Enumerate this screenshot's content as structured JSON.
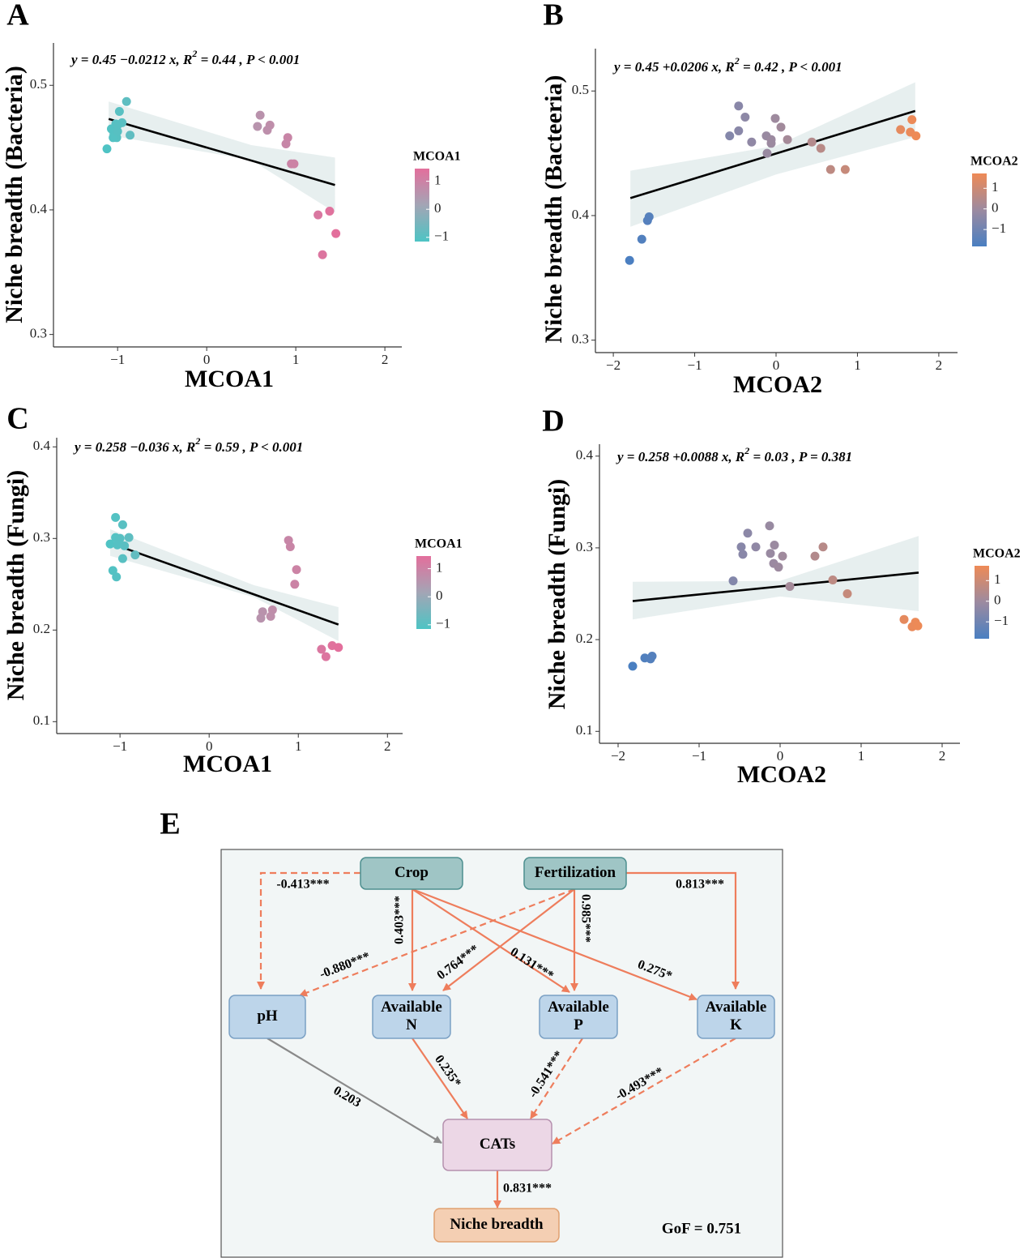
{
  "chart_data": [
    {
      "type": "scatter",
      "panel": "A",
      "equation": {
        "lhs": "y = 0.45  −0.0212   x,  R",
        "sup": "2",
        "rhs": " = 0.44 ,  P < 0.001"
      },
      "x_label": "MCOA1",
      "y_label": "Niche breadth (Bacteria)",
      "xlim": [
        -1.72,
        2.19
      ],
      "ylim": [
        0.29,
        0.534
      ],
      "xticks": [
        {
          "value": -1,
          "label": "−1"
        },
        0,
        1,
        2
      ],
      "yticks": [
        0.3,
        0.4,
        0.5
      ],
      "x": [
        -0.9,
        -0.98,
        -0.95,
        -1.02,
        -1.07,
        -0.86,
        -1.04,
        -1.01,
        -1.05,
        -1.12,
        -1.0,
        -1.0,
        0.6,
        0.71,
        0.57,
        0.68,
        0.91,
        0.89,
        0.95,
        0.98,
        1.25,
        1.38,
        1.45,
        1.3
      ],
      "y": [
        0.487,
        0.479,
        0.47,
        0.469,
        0.465,
        0.46,
        0.461,
        0.458,
        0.458,
        0.449,
        0.463,
        0.468,
        0.476,
        0.468,
        0.467,
        0.464,
        0.458,
        0.453,
        0.437,
        0.437,
        0.396,
        0.399,
        0.381,
        0.364
      ],
      "fit": {
        "x": [
          -1.1,
          1.44
        ],
        "y": [
          0.473,
          0.42
        ],
        "color": "#000000"
      },
      "band": {
        "x": [
          -1.1,
          0.5,
          1.44
        ],
        "lower": [
          0.46,
          0.44,
          0.398
        ],
        "upper": [
          0.487,
          0.452,
          0.442
        ],
        "color": "#e3ecec"
      },
      "colorbar": {
        "title": "MCOA1",
        "lim": [
          -1.15,
          1.45
        ],
        "ticks": [
          1,
          0,
          {
            "value": -1,
            "label": "−1"
          }
        ],
        "colors": [
          "#4dc4c4",
          "#a3a5b5",
          "#e36f9c"
        ]
      }
    },
    {
      "type": "scatter",
      "panel": "B",
      "equation": {
        "lhs": "y = 0.45  +0.0206   x,  R",
        "sup": "2",
        "rhs": " = 0.42 ,  P < 0.001"
      },
      "x_label": "MCOA2",
      "y_label": "Niche breadth (Bacteeria)",
      "xlim": [
        -2.22,
        2.23
      ],
      "ylim": [
        0.29,
        0.534
      ],
      "xticks": [
        {
          "value": -2,
          "label": "−2"
        },
        {
          "value": -1,
          "label": "−1"
        },
        0,
        1,
        2
      ],
      "yticks": [
        0.3,
        0.4,
        0.5
      ],
      "x": [
        -0.46,
        -0.38,
        -0.01,
        -0.46,
        0.06,
        -0.57,
        -0.12,
        -0.06,
        -0.06,
        -0.3,
        0.14,
        -0.11,
        0.44,
        0.55,
        0.67,
        0.85,
        1.53,
        1.67,
        1.65,
        1.72,
        -1.56,
        -1.58,
        -1.65,
        -1.8
      ],
      "y": [
        0.488,
        0.479,
        0.478,
        0.468,
        0.471,
        0.464,
        0.464,
        0.461,
        0.458,
        0.459,
        0.461,
        0.45,
        0.459,
        0.454,
        0.437,
        0.437,
        0.469,
        0.477,
        0.467,
        0.464,
        0.399,
        0.396,
        0.381,
        0.364
      ],
      "fit": {
        "x": [
          -1.79,
          1.71
        ],
        "y": [
          0.414,
          0.484
        ],
        "color": "#000000"
      },
      "band": {
        "x": [
          -1.79,
          0,
          1.71
        ],
        "lower": [
          0.391,
          0.433,
          0.463
        ],
        "upper": [
          0.436,
          0.456,
          0.507
        ],
        "color": "#e3ecec"
      },
      "colorbar": {
        "title": "MCOA2",
        "lim": [
          -1.82,
          1.72
        ],
        "ticks": [
          1,
          0,
          {
            "value": -1,
            "label": "−1"
          }
        ],
        "colors": [
          "#4a7fc1",
          "#9c8aa0",
          "#ee8a56"
        ]
      }
    },
    {
      "type": "scatter",
      "panel": "C",
      "equation": {
        "lhs": "y = 0.258  −0.036   x,  R",
        "sup": "2",
        "rhs": " = 0.59 ,  P < 0.001"
      },
      "x_label": "MCOA1",
      "y_label": "Niche breadth (Fungi)",
      "xlim": [
        -1.71,
        2.17
      ],
      "ylim": [
        0.087,
        0.41
      ],
      "xticks": [
        {
          "value": -1,
          "label": "−1"
        },
        0,
        1,
        2
      ],
      "yticks": [
        0.1,
        0.2,
        0.3,
        0.4
      ],
      "x": [
        -1.05,
        -0.97,
        -1.05,
        -1.0,
        -0.9,
        -1.11,
        -1.03,
        -0.95,
        -0.83,
        -0.97,
        -1.08,
        -1.04,
        0.89,
        0.91,
        0.98,
        0.96,
        0.6,
        0.71,
        0.58,
        0.69,
        1.26,
        1.38,
        1.45,
        1.31
      ],
      "y": [
        0.323,
        0.315,
        0.301,
        0.3,
        0.301,
        0.294,
        0.293,
        0.292,
        0.282,
        0.278,
        0.265,
        0.258,
        0.298,
        0.291,
        0.266,
        0.25,
        0.22,
        0.222,
        0.213,
        0.215,
        0.179,
        0.183,
        0.181,
        0.171
      ],
      "fit": {
        "x": [
          -1.11,
          1.45
        ],
        "y": [
          0.295,
          0.206
        ],
        "color": "#000000"
      },
      "band": {
        "x": [
          -1.11,
          0.5,
          1.45
        ],
        "lower": [
          0.281,
          0.236,
          0.188
        ],
        "upper": [
          0.31,
          0.249,
          0.225
        ],
        "color": "#e3ecec"
      },
      "colorbar": {
        "title": "MCOA1",
        "lim": [
          -1.15,
          1.45
        ],
        "ticks": [
          1,
          0,
          {
            "value": -1,
            "label": "−1"
          }
        ],
        "colors": [
          "#4dc4c4",
          "#a3a5b5",
          "#e36f9c"
        ]
      }
    },
    {
      "type": "scatter",
      "panel": "D",
      "equation": {
        "lhs": "y = 0.258  +0.0088   x,  R",
        "sup": "2",
        "rhs": " = 0.03 ,  P = 0.381"
      },
      "x_label": "MCOA2",
      "y_label": "Niche breadth (Fungi)",
      "xlim": [
        -2.23,
        2.22
      ],
      "ylim": [
        0.087,
        0.413
      ],
      "xticks": [
        {
          "value": -2,
          "label": "−2"
        },
        {
          "value": -1,
          "label": "−1"
        },
        0,
        1,
        2
      ],
      "yticks": [
        0.1,
        0.2,
        0.3,
        0.4
      ],
      "x": [
        -0.13,
        -0.4,
        -0.48,
        -0.3,
        -0.07,
        -0.46,
        -0.12,
        0.03,
        -0.08,
        -0.02,
        0.53,
        0.43,
        -0.58,
        0.12,
        0.65,
        0.83,
        1.53,
        1.67,
        1.63,
        1.7,
        -1.58,
        -1.67,
        -1.6,
        -1.82
      ],
      "y": [
        0.324,
        0.316,
        0.301,
        0.301,
        0.303,
        0.293,
        0.294,
        0.291,
        0.283,
        0.279,
        0.301,
        0.291,
        0.264,
        0.258,
        0.265,
        0.25,
        0.222,
        0.219,
        0.214,
        0.215,
        0.182,
        0.18,
        0.179,
        0.171
      ],
      "fit": {
        "x": [
          -1.82,
          1.71
        ],
        "y": [
          0.242,
          0.273
        ],
        "color": "#000000"
      },
      "band": {
        "x": [
          -1.82,
          0,
          1.71
        ],
        "lower": [
          0.222,
          0.247,
          0.231
        ],
        "upper": [
          0.263,
          0.264,
          0.313
        ],
        "color": "#e3ecec"
      },
      "colorbar": {
        "title": "MCOA2",
        "lim": [
          -1.82,
          1.72
        ],
        "ticks": [
          1,
          0,
          {
            "value": -1,
            "label": "−1"
          }
        ],
        "colors": [
          "#4a7fc1",
          "#9c8aa0",
          "#ee8a56"
        ]
      }
    }
  ],
  "diagram": {
    "panel": "E",
    "nodes": [
      [
        "Crop"
      ],
      [
        "Fertilization"
      ],
      [
        "pH"
      ],
      [
        "Available",
        "N"
      ],
      [
        "Available",
        "P"
      ],
      [
        "Available",
        "K"
      ],
      [
        "CATs"
      ],
      [
        "Niche breadth"
      ]
    ],
    "edges": [
      "-0.413***",
      "0.813***",
      "0.403***",
      "0.131***",
      "0.275*",
      "-0.880***",
      "0.764***",
      "0.985***",
      "0.235*",
      "-0.541***",
      "-0.493***",
      "0.203",
      "0.831***"
    ],
    "gof": "GoF = 0.751"
  }
}
